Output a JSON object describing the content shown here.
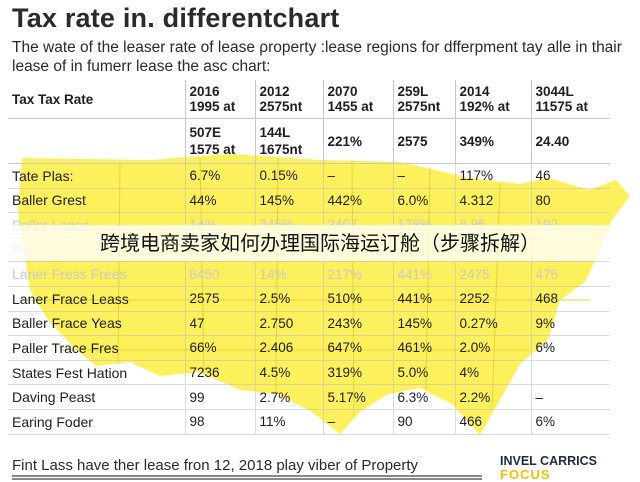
{
  "title": "Tax rate in. differentchart",
  "subtitle": "The wate of the  leaser rate of lease ρroperty :lease regions for dfferpment tay alle in thair lease of in fumerr lease the asc chart:",
  "colors": {
    "map_fill": "#fcee4a",
    "text": "#2a2a2a",
    "brand_navy": "#1f2a44",
    "brand_yellow": "#f0c400"
  },
  "table": {
    "header": [
      "Tax Tax Rate",
      "2016\n1995 at",
      "2012\n2575nt",
      "2070\n1455 at",
      "259L\n2575nt",
      "2014\n192% at",
      "3044L\n11575 at"
    ],
    "subheader": [
      "",
      "507E\n1575 at",
      "144L\n1675nt",
      "221%",
      "2575",
      "349%",
      "24.40"
    ],
    "rows": [
      {
        "cells": [
          "Tate Plas:",
          "6.7%",
          "0.15%",
          "–",
          "–",
          "117%",
          "46"
        ]
      },
      {
        "cells": [
          "Baller Grest",
          "44%",
          "145%",
          "442%",
          "6.0%",
          "4.312",
          "80"
        ]
      },
      {
        "cells": [
          "Paller Lease",
          "14%",
          "345%",
          "2407",
          "178%",
          "8.95",
          "192"
        ],
        "faded": true
      },
      {
        "cells": [
          "Pal",
          "",
          "",
          "",
          "",
          "",
          ""
        ],
        "faded": true
      },
      {
        "cells": [
          "Laner Fress Frees",
          "8450",
          "14%",
          "217%",
          "441%",
          "2475",
          "475"
        ],
        "faded": true
      },
      {
        "cells": [
          "Laner Frace Leass",
          "2575",
          "2.5%",
          "510%",
          "441%",
          "2252",
          "468"
        ]
      },
      {
        "cells": [
          "Baller Frace Yeas",
          "47",
          "2.750",
          "243%",
          "145%",
          "0.27%",
          "9%"
        ]
      },
      {
        "cells": [
          "Paller Trace Fres",
          "66%",
          "2.406",
          "647%",
          "461%",
          "2.0%",
          "6%"
        ]
      },
      {
        "cells": [
          "States Fest Hation",
          "7236",
          "4.5%",
          "319%",
          "5.0%",
          "4%",
          ""
        ]
      },
      {
        "cells": [
          "Daving Peast",
          "99",
          "2.7%",
          "5.17%",
          "6.3%",
          "2.2%",
          "–"
        ]
      },
      {
        "cells": [
          "Earing Foder",
          "98",
          "11%",
          "–",
          "90",
          "466",
          "6%"
        ]
      }
    ]
  },
  "overlay_banner": "跨境电商卖家如何办理国际海运订舱（步骤拆解）",
  "footer": "Fint Lass have ther lease fron 12, 2018 play viber of Property",
  "brand": {
    "name": "INVEL CARRICS",
    "sub": "FOCUS"
  }
}
